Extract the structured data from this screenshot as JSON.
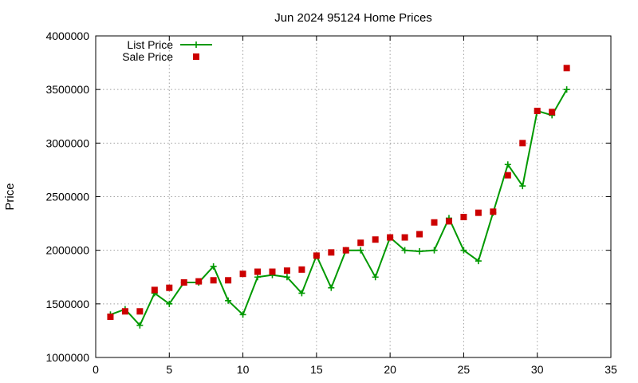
{
  "chart_data": {
    "type": "line",
    "title": "Jun 2024 95124 Home Prices",
    "xlabel": "",
    "ylabel": "Price",
    "xlim": [
      0,
      35
    ],
    "ylim": [
      1000000,
      4000000
    ],
    "xticks": [
      0,
      5,
      10,
      15,
      20,
      25,
      30,
      35
    ],
    "yticks": [
      1000000,
      1500000,
      2000000,
      2500000,
      3000000,
      3500000,
      4000000
    ],
    "grid": true,
    "legend_position": "top-left",
    "x": [
      1,
      2,
      3,
      4,
      5,
      6,
      7,
      8,
      9,
      10,
      11,
      12,
      13,
      14,
      15,
      16,
      17,
      18,
      19,
      20,
      21,
      22,
      23,
      24,
      25,
      26,
      27,
      28,
      29,
      30,
      31,
      32
    ],
    "series": [
      {
        "name": "List Price",
        "style": "line-with-plus-markers",
        "color": "#009900",
        "values": [
          1400000,
          1450000,
          1300000,
          1600000,
          1500000,
          1700000,
          1700000,
          1850000,
          1530000,
          1400000,
          1750000,
          1770000,
          1750000,
          1600000,
          1950000,
          1650000,
          2000000,
          2000000,
          1750000,
          2120000,
          2000000,
          1990000,
          2000000,
          2300000,
          2000000,
          1900000,
          2350000,
          2800000,
          2600000,
          3300000,
          3260000,
          3500000
        ]
      },
      {
        "name": "Sale Price",
        "style": "square-markers",
        "color": "#cc0000",
        "values": [
          1380000,
          1430000,
          1430000,
          1630000,
          1650000,
          1700000,
          1710000,
          1720000,
          1720000,
          1780000,
          1800000,
          1800000,
          1810000,
          1820000,
          1950000,
          1980000,
          2000000,
          2070000,
          2100000,
          2120000,
          2120000,
          2150000,
          2260000,
          2270000,
          2310000,
          2350000,
          2360000,
          2700000,
          3000000,
          3300000,
          3290000,
          3700000
        ]
      }
    ]
  }
}
